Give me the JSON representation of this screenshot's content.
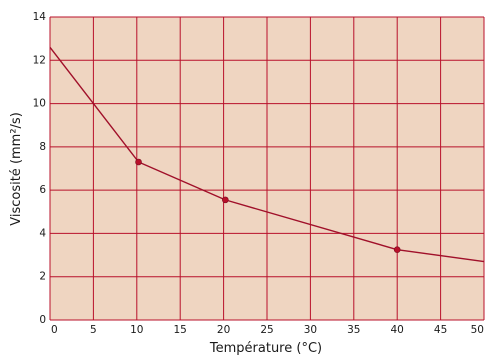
{
  "chart_data": {
    "type": "line",
    "title": "",
    "xlabel": "Température (°C)",
    "ylabel": "Viscosité (mm²/s)",
    "xlim": [
      0,
      50
    ],
    "ylim": [
      0,
      14
    ],
    "x_ticks": [
      0,
      5,
      10,
      15,
      20,
      25,
      30,
      35,
      40,
      45,
      50
    ],
    "y_ticks": [
      0,
      2,
      4,
      6,
      8,
      10,
      12,
      14
    ],
    "grid": true,
    "legend": "none",
    "colors": {
      "plot_background": "#efd5c1",
      "grid": "#b8102a",
      "line": "#a0102a",
      "marker": "#b8102a"
    },
    "series": [
      {
        "x": [
          0,
          10.2,
          20.2,
          40,
          50
        ],
        "y": [
          12.6,
          7.3,
          5.55,
          3.25,
          2.7
        ],
        "markers_at": [
          10.2,
          20.2,
          40
        ]
      }
    ]
  }
}
